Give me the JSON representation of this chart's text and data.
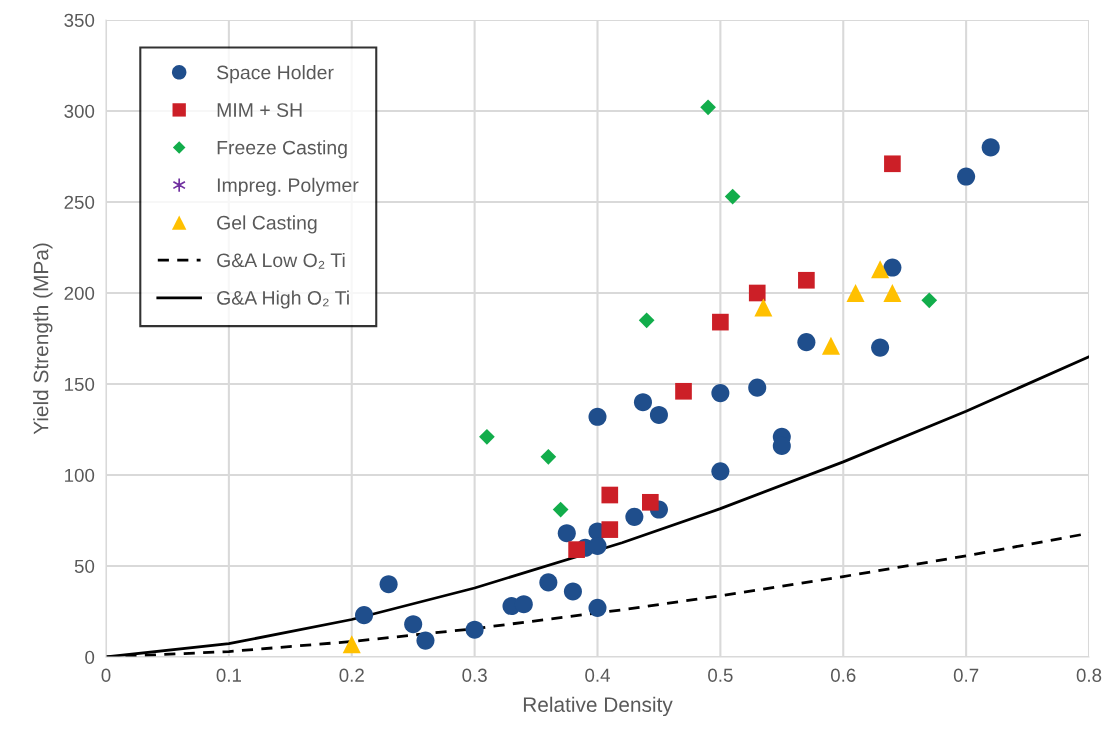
{
  "chart_data": {
    "type": "scatter",
    "xlabel": "Relative Density",
    "ylabel": "Yield Strength (MPa)",
    "xlim": [
      0,
      0.8
    ],
    "xticks": [
      0,
      0.1,
      0.2,
      0.3,
      0.4,
      0.5,
      0.6,
      0.7,
      0.8
    ],
    "ylim": [
      0,
      350
    ],
    "yticks": [
      0,
      50,
      100,
      150,
      200,
      250,
      300,
      350
    ],
    "grid": true,
    "legend": "top left",
    "series": [
      {
        "name": "Space Holder",
        "marker": "circle",
        "color": "#1f4e8c",
        "x": [
          0.21,
          0.23,
          0.25,
          0.26,
          0.3,
          0.33,
          0.34,
          0.36,
          0.375,
          0.38,
          0.39,
          0.4,
          0.4,
          0.4,
          0.4,
          0.43,
          0.437,
          0.45,
          0.45,
          0.5,
          0.5,
          0.53,
          0.55,
          0.55,
          0.57,
          0.63,
          0.64,
          0.7,
          0.72
        ],
        "values": [
          23,
          40,
          18,
          9,
          15,
          28,
          29,
          41,
          68,
          36,
          60,
          69,
          61,
          27,
          132,
          77,
          140,
          133,
          81,
          145,
          102,
          148,
          121,
          116,
          173,
          170,
          214,
          264,
          280
        ]
      },
      {
        "name": "MIM + SH",
        "marker": "square",
        "color": "#cc1f27",
        "x": [
          0.383,
          0.41,
          0.41,
          0.443,
          0.47,
          0.5,
          0.53,
          0.57,
          0.64
        ],
        "values": [
          59,
          89,
          70,
          85,
          146,
          184,
          200,
          207,
          271
        ]
      },
      {
        "name": "Freeze Casting",
        "marker": "diamond",
        "color": "#12ad4b",
        "x": [
          0.31,
          0.36,
          0.37,
          0.44,
          0.49,
          0.51,
          0.67
        ],
        "values": [
          121,
          110,
          81,
          185,
          302,
          253,
          196
        ]
      },
      {
        "name": "Impreg. Polymer",
        "marker": "star",
        "color": "#7030a0"
      },
      {
        "name": "Gel Casting",
        "marker": "triangle",
        "color": "#ffc000",
        "x": [
          0.2,
          0.535,
          0.59,
          0.61,
          0.63,
          0.64
        ],
        "values": [
          7,
          192,
          171,
          200,
          213,
          200
        ]
      },
      {
        "name": "G&A Low O₂ Ti",
        "type": "line",
        "marker": "none",
        "line_style": "dashed",
        "color": "#000000",
        "x": [
          0,
          0.1,
          0.2,
          0.3,
          0.42,
          0.5,
          0.6,
          0.7,
          0.8
        ],
        "values": [
          0,
          3,
          8.5,
          15.6,
          25.9,
          33.6,
          44.2,
          55.6,
          68
        ]
      },
      {
        "name": "G&A High O₂ Ti",
        "type": "line",
        "marker": "none",
        "line_style": "solid",
        "color": "#000000",
        "x": [
          0,
          0.1,
          0.2,
          0.3,
          0.42,
          0.5,
          0.6,
          0.7,
          0.8
        ],
        "values": [
          0,
          7.3,
          20.6,
          37.9,
          62.8,
          81.5,
          107.2,
          135,
          165
        ]
      }
    ]
  }
}
